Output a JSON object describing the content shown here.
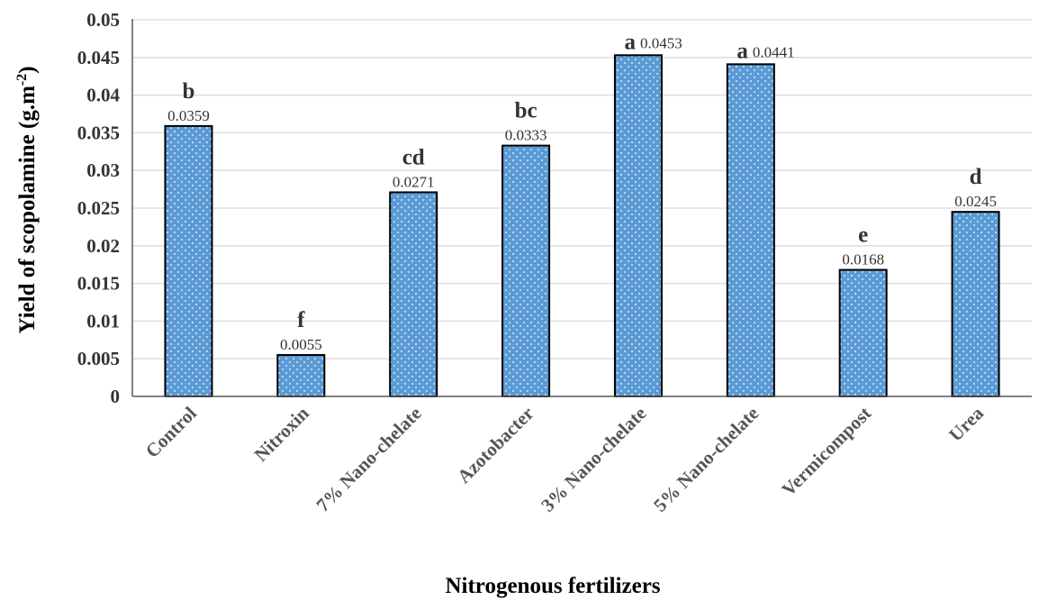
{
  "chart_data": {
    "type": "bar",
    "title": "",
    "xlabel": "Nitrogenous fertilizers",
    "ylabel": "Yield of scopolamine (g.m",
    "ylabel_sup": "-2",
    "ylabel_close": ")",
    "ylim": [
      0,
      0.05
    ],
    "yticks": [
      "0",
      "0.005",
      "0.01",
      "0.015",
      "0.02",
      "0.025",
      "0.03",
      "0.035",
      "0.04",
      "0.045",
      "0.05"
    ],
    "grid": true,
    "categories": [
      "Control",
      "Nitroxin",
      "7% Nano-chelate",
      "Azotobacter",
      "3% Nano-chelate",
      "5% Nano-chelate",
      "Vermicompost",
      "Urea"
    ],
    "values": [
      0.0359,
      0.0055,
      0.0271,
      0.0333,
      0.0453,
      0.0441,
      0.0168,
      0.0245
    ],
    "value_labels": [
      "0.0359",
      "0.0055",
      "0.0271",
      "0.0333",
      "0.0453",
      "0.0441",
      "0.0168",
      "0.0245"
    ],
    "significance_letters": [
      "b",
      "f",
      "cd",
      "bc",
      "a",
      "a",
      "e",
      "d"
    ],
    "colors": {
      "bar_fill": "#5b9bd5",
      "bar_stroke": "#000000",
      "bar_dots": "#ffffff",
      "grid": "#d9d9d9",
      "axis": "#595959"
    }
  }
}
